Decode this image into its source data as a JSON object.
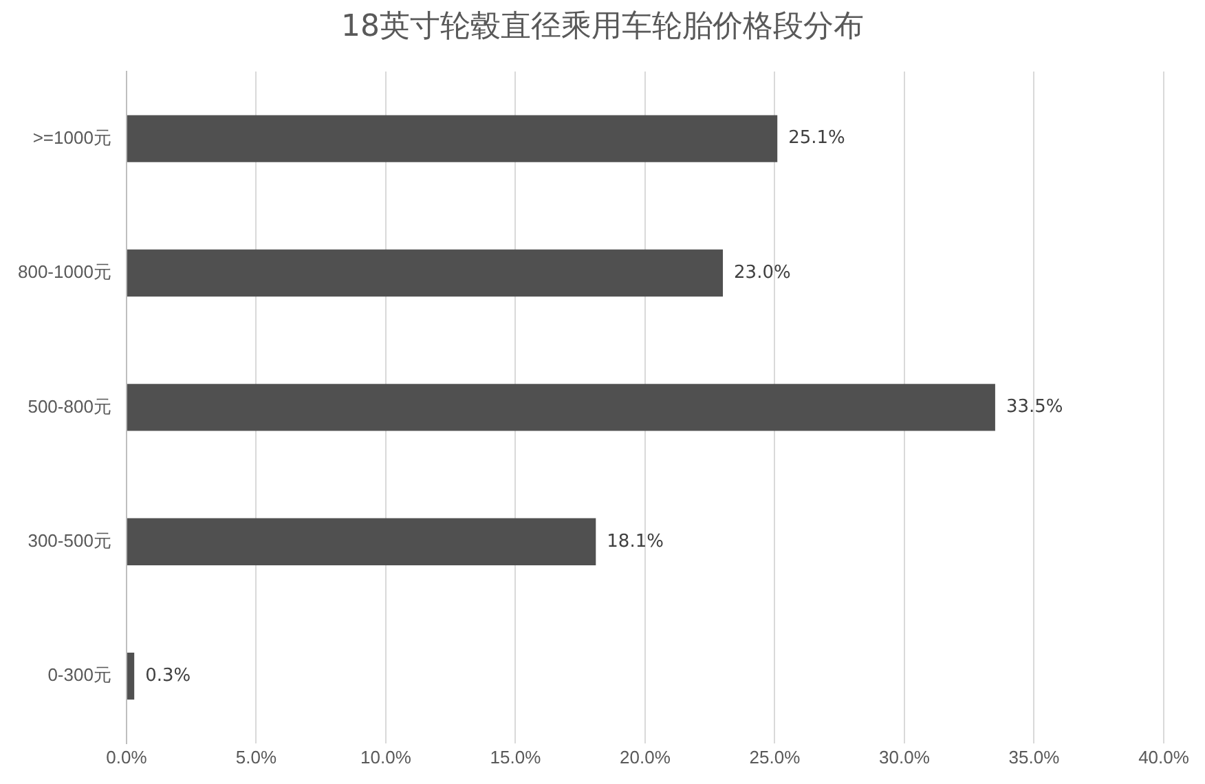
{
  "chart_data": {
    "type": "bar",
    "orientation": "horizontal",
    "title": "18英寸轮毂直径乘用车轮胎价格段分布",
    "categories": [
      ">=1000元",
      "800-1000元",
      "500-800元",
      "300-500元",
      "0-300元"
    ],
    "values": [
      25.1,
      23.0,
      33.5,
      18.1,
      0.3
    ],
    "value_labels": [
      "25.1%",
      "23.0%",
      "33.5%",
      "18.1%",
      "0.3%"
    ],
    "color": "#505050",
    "xlim": [
      0,
      40
    ],
    "xticks": [
      {
        "value": 0,
        "label": "0.0%"
      },
      {
        "value": 5,
        "label": "5.0%"
      },
      {
        "value": 10,
        "label": "10.0%"
      },
      {
        "value": 15,
        "label": "15.0%"
      },
      {
        "value": 20,
        "label": "20.0%"
      },
      {
        "value": 25,
        "label": "25.0%"
      },
      {
        "value": 30,
        "label": "30.0%"
      },
      {
        "value": 35,
        "label": "35.0%"
      },
      {
        "value": 40,
        "label": "40.0%"
      }
    ],
    "grid": "x",
    "legend": false
  }
}
